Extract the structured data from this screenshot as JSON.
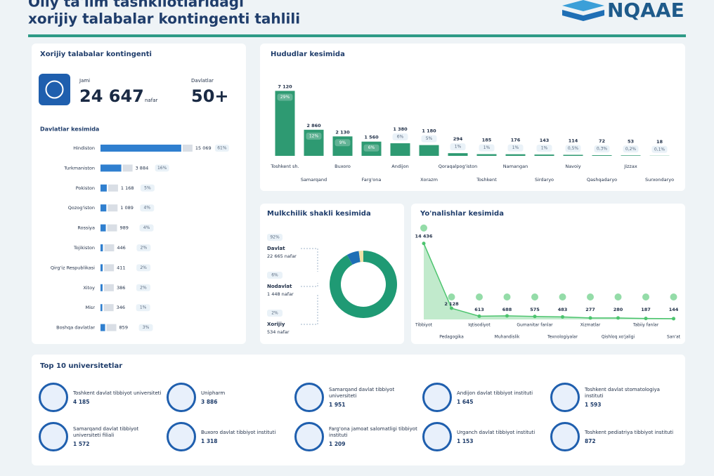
{
  "header": {
    "title_line1": "Oliy ta'lim tashkilotlaridagi",
    "title_line2": "xorijiy talabalar kontingenti tahlili",
    "logo": "NQAAE"
  },
  "summary": {
    "title": "Xorijiy talabalar kontingenti",
    "total_label": "Jami",
    "total": "24 647",
    "total_unit": "nafar",
    "countries_label": "Davlatlar",
    "countries": "50+"
  },
  "chart_data": [
    {
      "type": "hbar",
      "title": "Davlatlar kesimida",
      "categories": [
        "Hindiston",
        "Turkmaniston",
        "Pokiston",
        "Qozog'iston",
        "Rossiya",
        "Tojikiston",
        "Qirg'iz Respublikasi",
        "Xitoy",
        "Misr",
        "Boshqa davlatlar"
      ],
      "values": [
        15069,
        3884,
        1168,
        1089,
        989,
        446,
        411,
        386,
        346,
        859
      ],
      "value_labels": [
        "15 069",
        "3 884",
        "1 168",
        "1 089",
        "989",
        "446",
        "411",
        "386",
        "346",
        "859"
      ],
      "share_labels": [
        "61%",
        "16%",
        "5%",
        "4%",
        "4%",
        "2%",
        "2%",
        "2%",
        "1%",
        "3%"
      ],
      "color": "#2f7fcf",
      "xlim": [
        0,
        16000
      ]
    },
    {
      "type": "bar",
      "title": "Hududlar kesimida",
      "categories": [
        "Toshkent sh.",
        "Samarqand",
        "Buxoro",
        "Farg'ona",
        "Andijon",
        "Xorazm",
        "Qoraqalpog'iston",
        "Toshkent",
        "Namangan",
        "Sirdaryo",
        "Navoiy",
        "Qashqadaryo",
        "Jizzax",
        "Surxondaryo"
      ],
      "values": [
        7120,
        2860,
        2130,
        1560,
        1380,
        1180,
        294,
        185,
        176,
        143,
        114,
        72,
        53,
        18
      ],
      "value_labels": [
        "7 120",
        "2 860",
        "2 130",
        "1 560",
        "1 380",
        "1 180",
        "294",
        "185",
        "176",
        "143",
        "114",
        "72",
        "53",
        "18"
      ],
      "share_labels": [
        "29%",
        "12%",
        "9%",
        "6%",
        "6%",
        "5%",
        "1%",
        "1%",
        "1%",
        "1%",
        "0,5%",
        "0,3%",
        "0,2%",
        "0,1%"
      ],
      "color": "#2e9a72",
      "ylim": [
        0,
        8000
      ]
    },
    {
      "type": "pie",
      "title": "Mulkchilik shakli kesimida",
      "categories": [
        "Davlat",
        "Nodavlat",
        "Xorijiy"
      ],
      "values": [
        22665,
        1448,
        534
      ],
      "value_labels": [
        "22 665 nafar",
        "1 448 nafar",
        "534 nafar"
      ],
      "share_labels": [
        "92%",
        "6%",
        "2%"
      ],
      "colors": [
        "#1f9a74",
        "#1f6fb5",
        "#efe2a8"
      ]
    },
    {
      "type": "area",
      "title": "Yo'nalishlar kesimida",
      "categories": [
        "Tibbiyot",
        "Pedagogika",
        "Iqtisodiyot",
        "Muhandislik",
        "Gumanitar fanlar",
        "Texnologiyalar",
        "Xizmatlar",
        "Qishloq xo'jaligi",
        "Tabiiy fanlar",
        "San'at"
      ],
      "values": [
        14436,
        2128,
        613,
        688,
        575,
        483,
        277,
        280,
        187,
        144
      ],
      "value_labels": [
        "14 436",
        "2 128",
        "613",
        "688",
        "575",
        "483",
        "277",
        "280",
        "187",
        "144"
      ],
      "color": "#4cc46e",
      "ylim": [
        0,
        16000
      ]
    }
  ],
  "universities": {
    "title": "Top 10 universitetlar",
    "items": [
      {
        "name": "Toshkent davlat tibbiyot universiteti",
        "count": "4 185"
      },
      {
        "name": "Unipharm",
        "count": "3 886"
      },
      {
        "name": "Samarqand davlat tibbiyot universiteti",
        "count": "1 951"
      },
      {
        "name": "Andijon davlat tibbiyot instituti",
        "count": "1 645"
      },
      {
        "name": "Toshkent davlat stomatologiya instituti",
        "count": "1 593"
      },
      {
        "name": "Samarqand davlat tibbiyot universiteti filiali",
        "count": "1 572"
      },
      {
        "name": "Buxoro davlat tibbiyot instituti",
        "count": "1 318"
      },
      {
        "name": "Farg'ona jamoat salomatligi tibbiyot instituti",
        "count": "1 209"
      },
      {
        "name": "Urganch davlat tibbiyot instituti",
        "count": "1 153"
      },
      {
        "name": "Toshkent pediatriya tibbiyot instituti",
        "count": "872"
      }
    ]
  }
}
